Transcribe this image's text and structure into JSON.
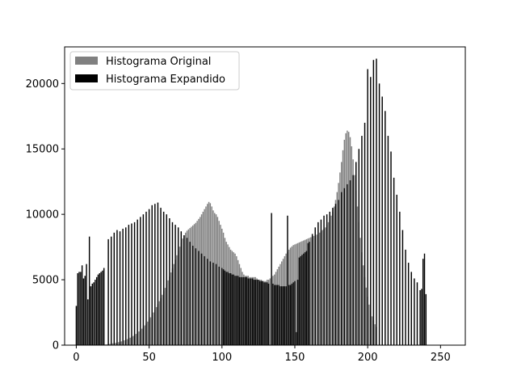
{
  "chart_data": {
    "type": "bar",
    "title": "",
    "xlabel": "",
    "ylabel": "",
    "xlim": [
      -8,
      267
    ],
    "ylim": [
      0,
      22800
    ],
    "x_ticks": [
      0,
      50,
      100,
      150,
      200,
      250
    ],
    "y_ticks": [
      0,
      5000,
      10000,
      15000,
      20000
    ],
    "legend": {
      "position": "top-left"
    },
    "series": [
      {
        "name": "Histograma Original",
        "color": "#808080",
        "bin_start": 20,
        "values": [
          50,
          60,
          80,
          100,
          120,
          140,
          160,
          180,
          200,
          230,
          260,
          290,
          330,
          370,
          410,
          460,
          510,
          570,
          630,
          700,
          780,
          860,
          950,
          1050,
          1150,
          1260,
          1380,
          1510,
          1650,
          1800,
          1960,
          2130,
          2310,
          2500,
          2700,
          2910,
          3130,
          3360,
          3600,
          3850,
          4110,
          4380,
          4660,
          4950,
          5250,
          5560,
          5880,
          6200,
          6530,
          6870,
          7200,
          7530,
          7850,
          8150,
          8400,
          8600,
          8750,
          8850,
          8950,
          9050,
          9150,
          9250,
          9350,
          9500,
          9650,
          9800,
          10000,
          10200,
          10400,
          10600,
          10800,
          10950,
          10850,
          10600,
          10300,
          10100,
          10000,
          9800,
          9500,
          9200,
          8900,
          8600,
          8200,
          7900,
          7700,
          7500,
          7300,
          7200,
          7100,
          7000,
          6800,
          6500,
          6200,
          5900,
          5600,
          5400,
          5300,
          5300,
          5300,
          5200,
          5200,
          5200,
          5200,
          5200,
          5100,
          5000,
          5000,
          5000,
          4900,
          4900,
          4900,
          5000,
          5000,
          5100,
          5200,
          5300,
          5400,
          5600,
          5800,
          6000,
          6200,
          6400,
          6600,
          6800,
          7000,
          7150,
          7300,
          7450,
          7550,
          7650,
          7700,
          7750,
          7800,
          7850,
          7900,
          7950,
          8000,
          8050,
          8100,
          8150,
          8200,
          8250,
          8300,
          8350,
          8400,
          8450,
          8500,
          8600,
          8700,
          8800,
          8900,
          9000,
          9200,
          9400,
          9600,
          9900,
          10200,
          10600,
          11100,
          11700,
          12400,
          13200,
          14000,
          14900,
          15700,
          16200,
          16400,
          16300,
          15900,
          15200,
          14200,
          13000,
          11800,
          10600,
          9400,
          8200,
          7100,
          6100,
          5200,
          4400,
          3700,
          3100,
          2600,
          2200,
          1900,
          1600,
          1400
        ]
      },
      {
        "name": "Histograma Expandido",
        "color": "#000000",
        "bin_start": 0,
        "values": [
          3000,
          5500,
          5600,
          5600,
          6100,
          5100,
          5300,
          6200,
          3500,
          8300,
          4500,
          4700,
          4800,
          5000,
          5200,
          5400,
          5500,
          5600,
          5700,
          5900,
          0,
          0,
          8100,
          0,
          8300,
          0,
          8600,
          0,
          8800,
          0,
          8700,
          0,
          8900,
          0,
          9000,
          0,
          9200,
          0,
          9300,
          0,
          9400,
          0,
          9600,
          0,
          9800,
          0,
          10000,
          0,
          10200,
          0,
          10400,
          0,
          10700,
          0,
          10800,
          0,
          10900,
          0,
          10500,
          0,
          10200,
          0,
          10000,
          0,
          9700,
          0,
          9400,
          0,
          9200,
          0,
          9000,
          0,
          8700,
          0,
          8400,
          0,
          8200,
          0,
          7900,
          0,
          7600,
          0,
          7400,
          0,
          7200,
          0,
          7000,
          0,
          6800,
          0,
          6600,
          0,
          6400,
          0,
          6300,
          0,
          6200,
          0,
          6000,
          0,
          5900,
          5800,
          5700,
          5600,
          5600,
          5500,
          5500,
          5400,
          5400,
          5300,
          5300,
          5300,
          5200,
          5200,
          5200,
          5200,
          5200,
          5200,
          5100,
          5100,
          5100,
          5100,
          5000,
          5000,
          5000,
          5000,
          4900,
          4900,
          4900,
          4800,
          4800,
          4800,
          4700,
          0,
          10100,
          4700,
          4600,
          4600,
          4600,
          4600,
          4500,
          4500,
          4500,
          4500,
          4500,
          9900,
          4600,
          4600,
          4700,
          4800,
          4900,
          1000,
          5000,
          6700,
          6800,
          6900,
          7000,
          7100,
          7200,
          7800,
          7900,
          0,
          8500,
          0,
          9000,
          0,
          9400,
          0,
          9600,
          0,
          9900,
          0,
          10000,
          0,
          10200,
          0,
          10500,
          0,
          10800,
          0,
          11100,
          0,
          11700,
          0,
          12000,
          0,
          12300,
          0,
          12600,
          0,
          13000,
          0,
          14000,
          0,
          15000,
          0,
          16000,
          0,
          17000,
          0,
          21100,
          0,
          20500,
          0,
          21800,
          0,
          21900,
          0,
          20000,
          0,
          19000,
          0,
          17900,
          0,
          16000,
          0,
          14800,
          0,
          12800,
          0,
          11500,
          0,
          10200,
          0,
          8800,
          0,
          7300,
          0,
          6300,
          0,
          5600,
          0,
          5100,
          0,
          4800,
          0,
          4200,
          4300,
          6600,
          7000,
          3900,
          0,
          0
        ]
      }
    ]
  }
}
